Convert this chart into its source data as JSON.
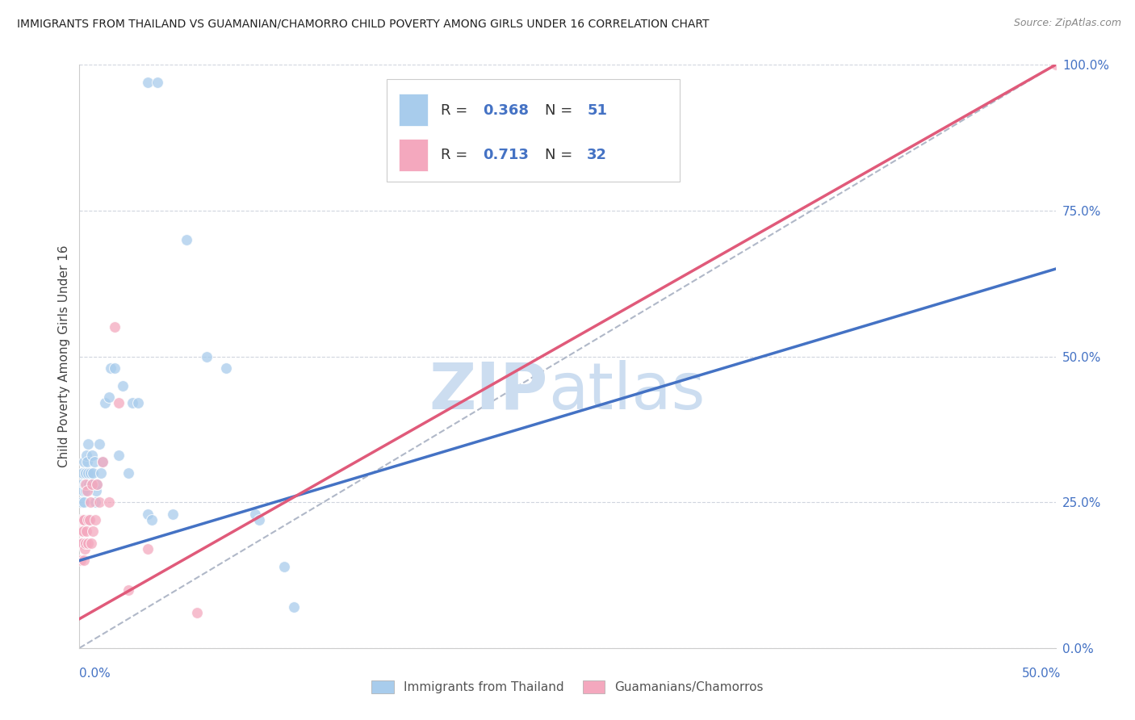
{
  "title": "IMMIGRANTS FROM THAILAND VS GUAMANIAN/CHAMORRO CHILD POVERTY AMONG GIRLS UNDER 16 CORRELATION CHART",
  "source": "Source: ZipAtlas.com",
  "ylabel": "Child Poverty Among Girls Under 16",
  "legend_label1": "Immigrants from Thailand",
  "legend_label2": "Guamanians/Chamorros",
  "R1": "0.368",
  "N1": "51",
  "R2": "0.713",
  "N2": "32",
  "color_blue": "#a8ccec",
  "color_pink": "#f4a8be",
  "color_blue_line": "#4472c4",
  "color_pink_line": "#e05a7a",
  "color_gray_dash": "#b0b8c8",
  "watermark_zip_color": "#ccddf0",
  "watermark_atlas_color": "#ccddf0",
  "xlim": [
    0,
    50
  ],
  "ylim": [
    0,
    100
  ],
  "blue_line_x0": 0,
  "blue_line_y0": 15,
  "blue_line_x1": 50,
  "blue_line_y1": 65,
  "pink_line_x0": 0,
  "pink_line_y0": 5,
  "pink_line_x1": 50,
  "pink_line_y1": 100,
  "thailand_x": [
    0.05,
    0.08,
    0.1,
    0.12,
    0.15,
    0.18,
    0.2,
    0.22,
    0.25,
    0.28,
    0.3,
    0.32,
    0.35,
    0.38,
    0.4,
    0.42,
    0.45,
    0.48,
    0.5,
    0.55,
    0.6,
    0.65,
    0.7,
    0.75,
    0.8,
    0.85,
    0.9,
    1.0,
    1.1,
    1.2,
    1.3,
    1.5,
    1.6,
    1.8,
    2.0,
    2.2,
    2.5,
    2.7,
    3.0,
    3.5,
    4.0,
    5.5,
    6.5,
    7.5,
    3.5,
    3.7,
    4.8,
    10.5,
    11.0,
    9.0,
    9.2
  ],
  "thailand_y": [
    22,
    18,
    25,
    28,
    30,
    27,
    22,
    25,
    32,
    28,
    30,
    27,
    33,
    28,
    32,
    30,
    35,
    28,
    22,
    30,
    28,
    33,
    30,
    32,
    25,
    27,
    28,
    35,
    30,
    32,
    42,
    43,
    48,
    48,
    33,
    45,
    30,
    42,
    42,
    97,
    97,
    70,
    50,
    48,
    23,
    22,
    23,
    14,
    7,
    23,
    22
  ],
  "guam_x": [
    0.05,
    0.08,
    0.1,
    0.12,
    0.15,
    0.18,
    0.2,
    0.22,
    0.25,
    0.28,
    0.3,
    0.32,
    0.35,
    0.4,
    0.42,
    0.45,
    0.5,
    0.55,
    0.6,
    0.65,
    0.7,
    0.8,
    0.9,
    1.0,
    1.2,
    1.5,
    1.8,
    2.0,
    2.5,
    3.5,
    6.0,
    50.0
  ],
  "guam_y": [
    18,
    15,
    20,
    22,
    18,
    20,
    22,
    15,
    22,
    17,
    28,
    18,
    20,
    27,
    22,
    18,
    22,
    25,
    18,
    28,
    20,
    22,
    28,
    25,
    32,
    25,
    55,
    42,
    10,
    17,
    6,
    100
  ]
}
